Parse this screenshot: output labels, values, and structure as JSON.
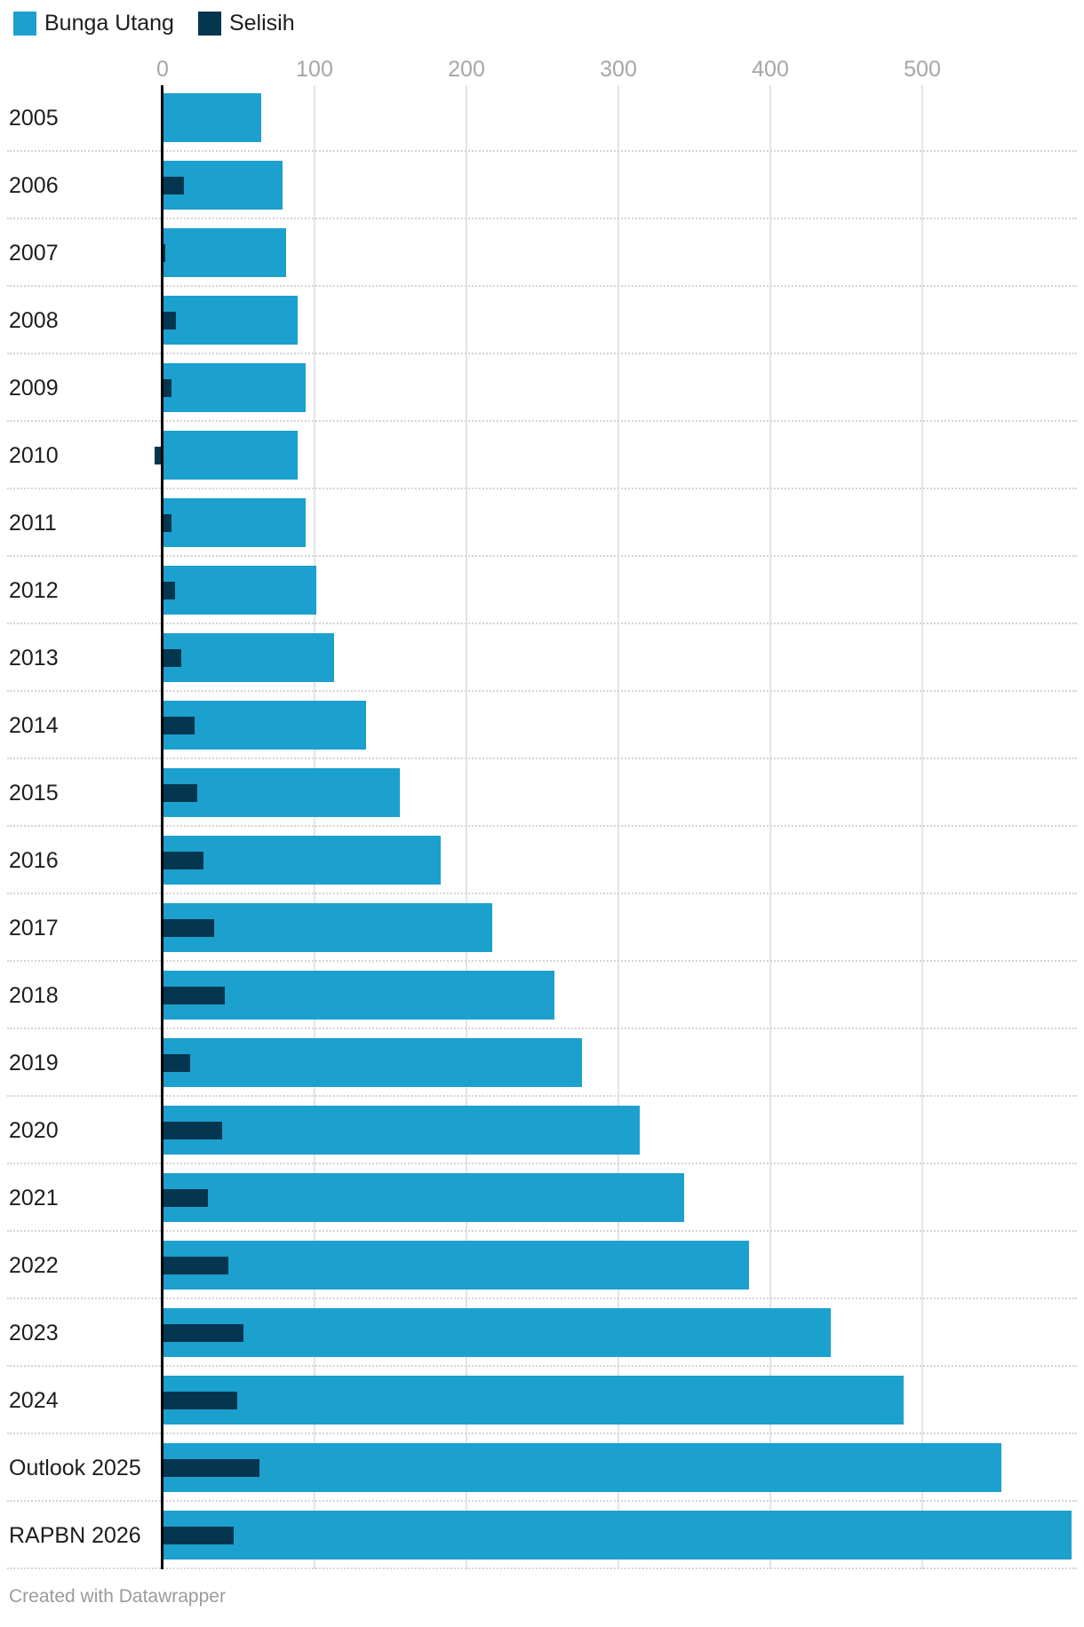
{
  "legend": [
    {
      "label": "Bunga Utang",
      "color": "#1CA0CE"
    },
    {
      "label": "Selisih",
      "color": "#05364F"
    }
  ],
  "colors": {
    "bunga_utang": "#1CA0CE",
    "selisih": "#05364F",
    "tick_label": "#a6a6a6",
    "row_label": "#1d1d1d",
    "gridline": "#e4e4e4",
    "separator": "#d4d4d4",
    "zero_axis": "#000000"
  },
  "caption": "Created with Datawrapper",
  "chart_data": {
    "type": "bar",
    "orientation": "horizontal",
    "title": "",
    "xlabel": "",
    "ylabel": "",
    "xlim": [
      0,
      600
    ],
    "ticks": [
      0,
      100,
      200,
      300,
      400,
      500
    ],
    "grid": "vertical-solid, dotted row separators",
    "legend_position": "top-left",
    "categories": [
      "2005",
      "2006",
      "2007",
      "2008",
      "2009",
      "2010",
      "2011",
      "2012",
      "2013",
      "2014",
      "2015",
      "2016",
      "2017",
      "2018",
      "2019",
      "2020",
      "2021",
      "2022",
      "2023",
      "2024",
      "Outlook 2025",
      "RAPBN 2026"
    ],
    "series": [
      {
        "name": "Bunga Utang",
        "values": [
          65,
          79,
          81,
          89,
          94,
          89,
          94,
          101,
          113,
          134,
          156,
          183,
          217,
          258,
          276,
          314,
          343,
          386,
          440,
          488,
          552,
          598
        ]
      },
      {
        "name": "Selisih",
        "values": [
          null,
          14,
          2,
          9,
          6,
          -5,
          6,
          8,
          12,
          21,
          23,
          27,
          34,
          41,
          18,
          39,
          30,
          43,
          53,
          49,
          64,
          47
        ]
      }
    ]
  }
}
